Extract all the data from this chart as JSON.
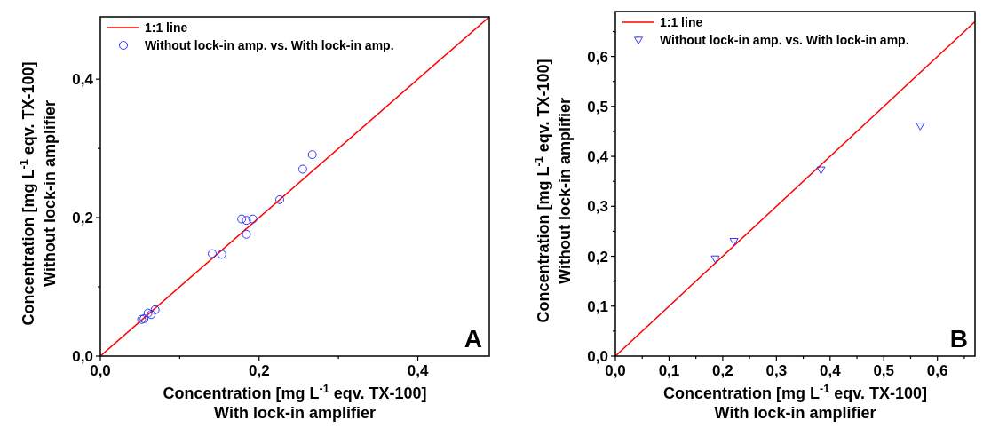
{
  "chart_data": [
    {
      "type": "scatter",
      "xlabel": "Concentration [mg L$^{-1}$ eqv. TX-100]\nWith lock-in amplifier",
      "ylabel": "Concentration [mg L$^{-1}$ eqv. TX-100]\nWithout lock-in amplifier",
      "xlim": [
        0,
        0.49
      ],
      "ylim": [
        0,
        0.49
      ],
      "xticks": [
        {
          "value": 0,
          "label": "0,0"
        },
        {
          "value": 0.1,
          "label": null
        },
        {
          "value": 0.2,
          "label": "0,2"
        },
        {
          "value": 0.3,
          "label": null
        },
        {
          "value": 0.4,
          "label": "0,4"
        }
      ],
      "yticks": [
        {
          "value": 0,
          "label": "0,0"
        },
        {
          "value": 0.1,
          "label": null
        },
        {
          "value": 0.2,
          "label": "0,2"
        },
        {
          "value": 0.3,
          "label": null
        },
        {
          "value": 0.4,
          "label": "0,4"
        }
      ],
      "legend": "top left",
      "grid": false,
      "annotations": [
        "A"
      ],
      "series": [
        {
          "name": "1:1 line",
          "type": "line",
          "color": "#ff0000",
          "x": [
            0,
            0.49
          ],
          "values": [
            0,
            0.49
          ]
        },
        {
          "name": "Without lock-in amp. vs. With lock-in amp.",
          "color": "#3333ff",
          "marker": "circle",
          "x": [
            0.267,
            0.255,
            0.226,
            0.192,
            0.184,
            0.178,
            0.184,
            0.141,
            0.153,
            0.069,
            0.06,
            0.064,
            0.055,
            0.052
          ],
          "values": [
            0.291,
            0.27,
            0.226,
            0.198,
            0.196,
            0.198,
            0.176,
            0.148,
            0.147,
            0.067,
            0.062,
            0.06,
            0.054,
            0.053
          ]
        }
      ]
    },
    {
      "type": "scatter",
      "xlabel": "Concentration [mg L$^{-1}$ eqv. TX-100]\nWith lock-in amplifier",
      "ylabel": "Concentration [mg L$^{-1}$ eqv. TX-100]\nWithout lock-in amplifier",
      "xlim": [
        0,
        0.67
      ],
      "ylim": [
        0,
        0.69
      ],
      "xticks": [
        {
          "value": 0,
          "label": "0,0"
        },
        {
          "value": 0.05,
          "label": null
        },
        {
          "value": 0.1,
          "label": "0,1"
        },
        {
          "value": 0.15,
          "label": null
        },
        {
          "value": 0.2,
          "label": "0,2"
        },
        {
          "value": 0.25,
          "label": null
        },
        {
          "value": 0.3,
          "label": "0,3"
        },
        {
          "value": 0.35,
          "label": null
        },
        {
          "value": 0.4,
          "label": "0,4"
        },
        {
          "value": 0.45,
          "label": null
        },
        {
          "value": 0.5,
          "label": "0,5"
        },
        {
          "value": 0.55,
          "label": null
        },
        {
          "value": 0.6,
          "label": "0,6"
        },
        {
          "value": 0.65,
          "label": null
        }
      ],
      "yticks": [
        {
          "value": 0,
          "label": "0,0"
        },
        {
          "value": 0.05,
          "label": null
        },
        {
          "value": 0.1,
          "label": "0,1"
        },
        {
          "value": 0.15,
          "label": null
        },
        {
          "value": 0.2,
          "label": "0,2"
        },
        {
          "value": 0.25,
          "label": null
        },
        {
          "value": 0.3,
          "label": "0,3"
        },
        {
          "value": 0.35,
          "label": null
        },
        {
          "value": 0.4,
          "label": "0,4"
        },
        {
          "value": 0.45,
          "label": null
        },
        {
          "value": 0.5,
          "label": "0,5"
        },
        {
          "value": 0.55,
          "label": null
        },
        {
          "value": 0.6,
          "label": "0,6"
        },
        {
          "value": 0.65,
          "label": null
        }
      ],
      "legend": "top left",
      "grid": false,
      "annotations": [
        "B"
      ],
      "series": [
        {
          "name": "1:1 line",
          "type": "line",
          "color": "#ff0000",
          "x": [
            0,
            0.67
          ],
          "values": [
            0,
            0.67
          ]
        },
        {
          "name": "Without lock-in amp. vs. With lock-in amp.",
          "color": "#3333ff",
          "marker": "triangle",
          "x": [
            0.186,
            0.221,
            0.383,
            0.568
          ],
          "values": [
            0.195,
            0.23,
            0.373,
            0.461
          ]
        }
      ]
    }
  ]
}
